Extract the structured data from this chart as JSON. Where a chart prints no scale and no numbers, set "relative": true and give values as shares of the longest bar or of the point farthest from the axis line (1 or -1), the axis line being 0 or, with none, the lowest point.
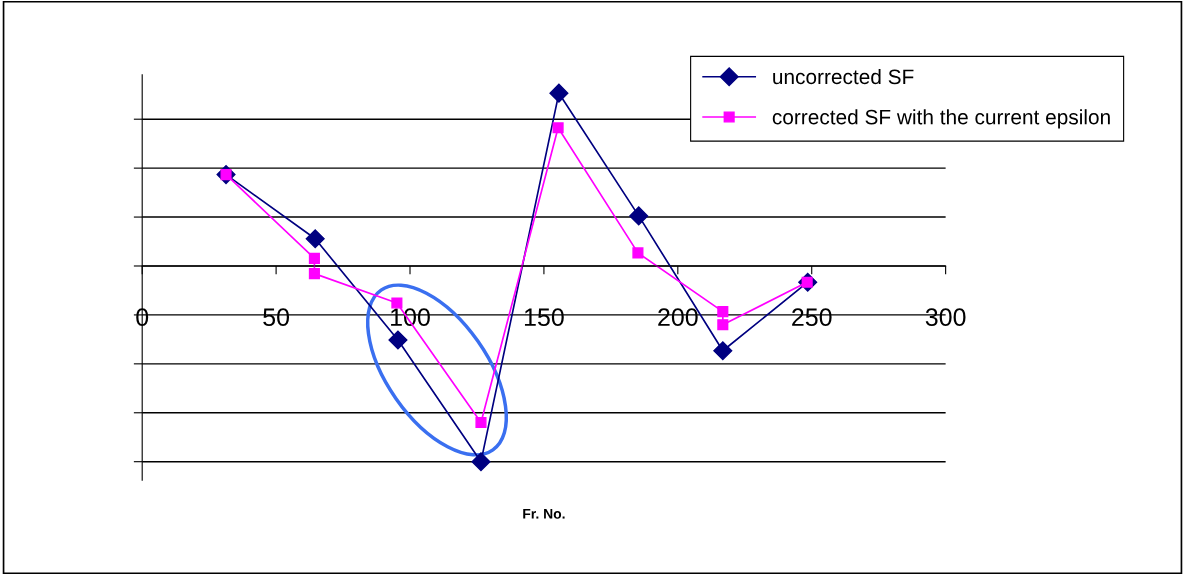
{
  "chart_data": {
    "type": "line",
    "relative": true,
    "xlabel": "Fr. No.",
    "xlim": [
      0,
      300
    ],
    "xticks": [
      0,
      50,
      100,
      150,
      200,
      250,
      300
    ],
    "grid": "y",
    "legend": "top right",
    "series": [
      {
        "name": "uncorrected SF",
        "color": "#000080",
        "marker": "diamond",
        "x": [
          31.3,
          64.6,
          95.5,
          126.5,
          155.6,
          185.4,
          216.8,
          248.5
        ],
        "values": [
          0.467,
          0.139,
          -0.378,
          -1,
          0.883,
          0.256,
          -0.433,
          -0.083
        ]
      },
      {
        "name": "corrected SF with the current epsilon",
        "color": "#ff00ff",
        "marker": "square",
        "x": [
          31.3,
          64.3,
          64.3,
          95.1,
          126.5,
          155.3,
          185.1,
          216.8,
          216.8,
          248.3
        ],
        "values": [
          0.467,
          0.039,
          -0.039,
          -0.189,
          -0.8,
          0.706,
          0.067,
          -0.233,
          -0.3,
          -0.083
        ]
      }
    ]
  }
}
